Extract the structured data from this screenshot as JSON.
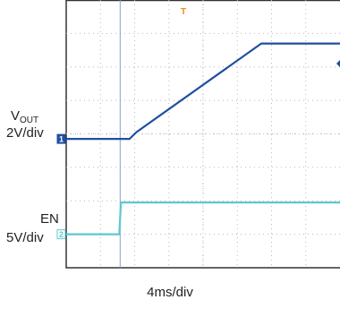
{
  "chart_data": {
    "type": "line",
    "title": "",
    "xlabel": "4ms/div",
    "x_divisions": 8,
    "y_divisions": 8,
    "grid": true,
    "series": [
      {
        "name": "VOUT",
        "scale_label": "2V/div",
        "channel": "1",
        "color": "#1f4fa0",
        "points_div": [
          [
            0,
            -0.15
          ],
          [
            1.85,
            -0.15
          ],
          [
            2.05,
            0.05
          ],
          [
            5.7,
            2.7
          ],
          [
            8,
            2.7
          ]
        ]
      },
      {
        "name": "EN",
        "scale_label": "5V/div",
        "channel": "2",
        "color": "#5cc8d2",
        "points_div": [
          [
            0,
            -3.0
          ],
          [
            1.55,
            -3.0
          ],
          [
            1.6,
            -2.05
          ],
          [
            8,
            -2.05
          ]
        ]
      }
    ],
    "trigger_marker": "T",
    "trigger_color": "#f08a20"
  },
  "labels": {
    "vout_main": "V",
    "vout_sub": "OUT",
    "vout_scale": "2V/div",
    "en_name": "EN",
    "en_scale": "5V/div",
    "x_scale": "4ms/div"
  }
}
